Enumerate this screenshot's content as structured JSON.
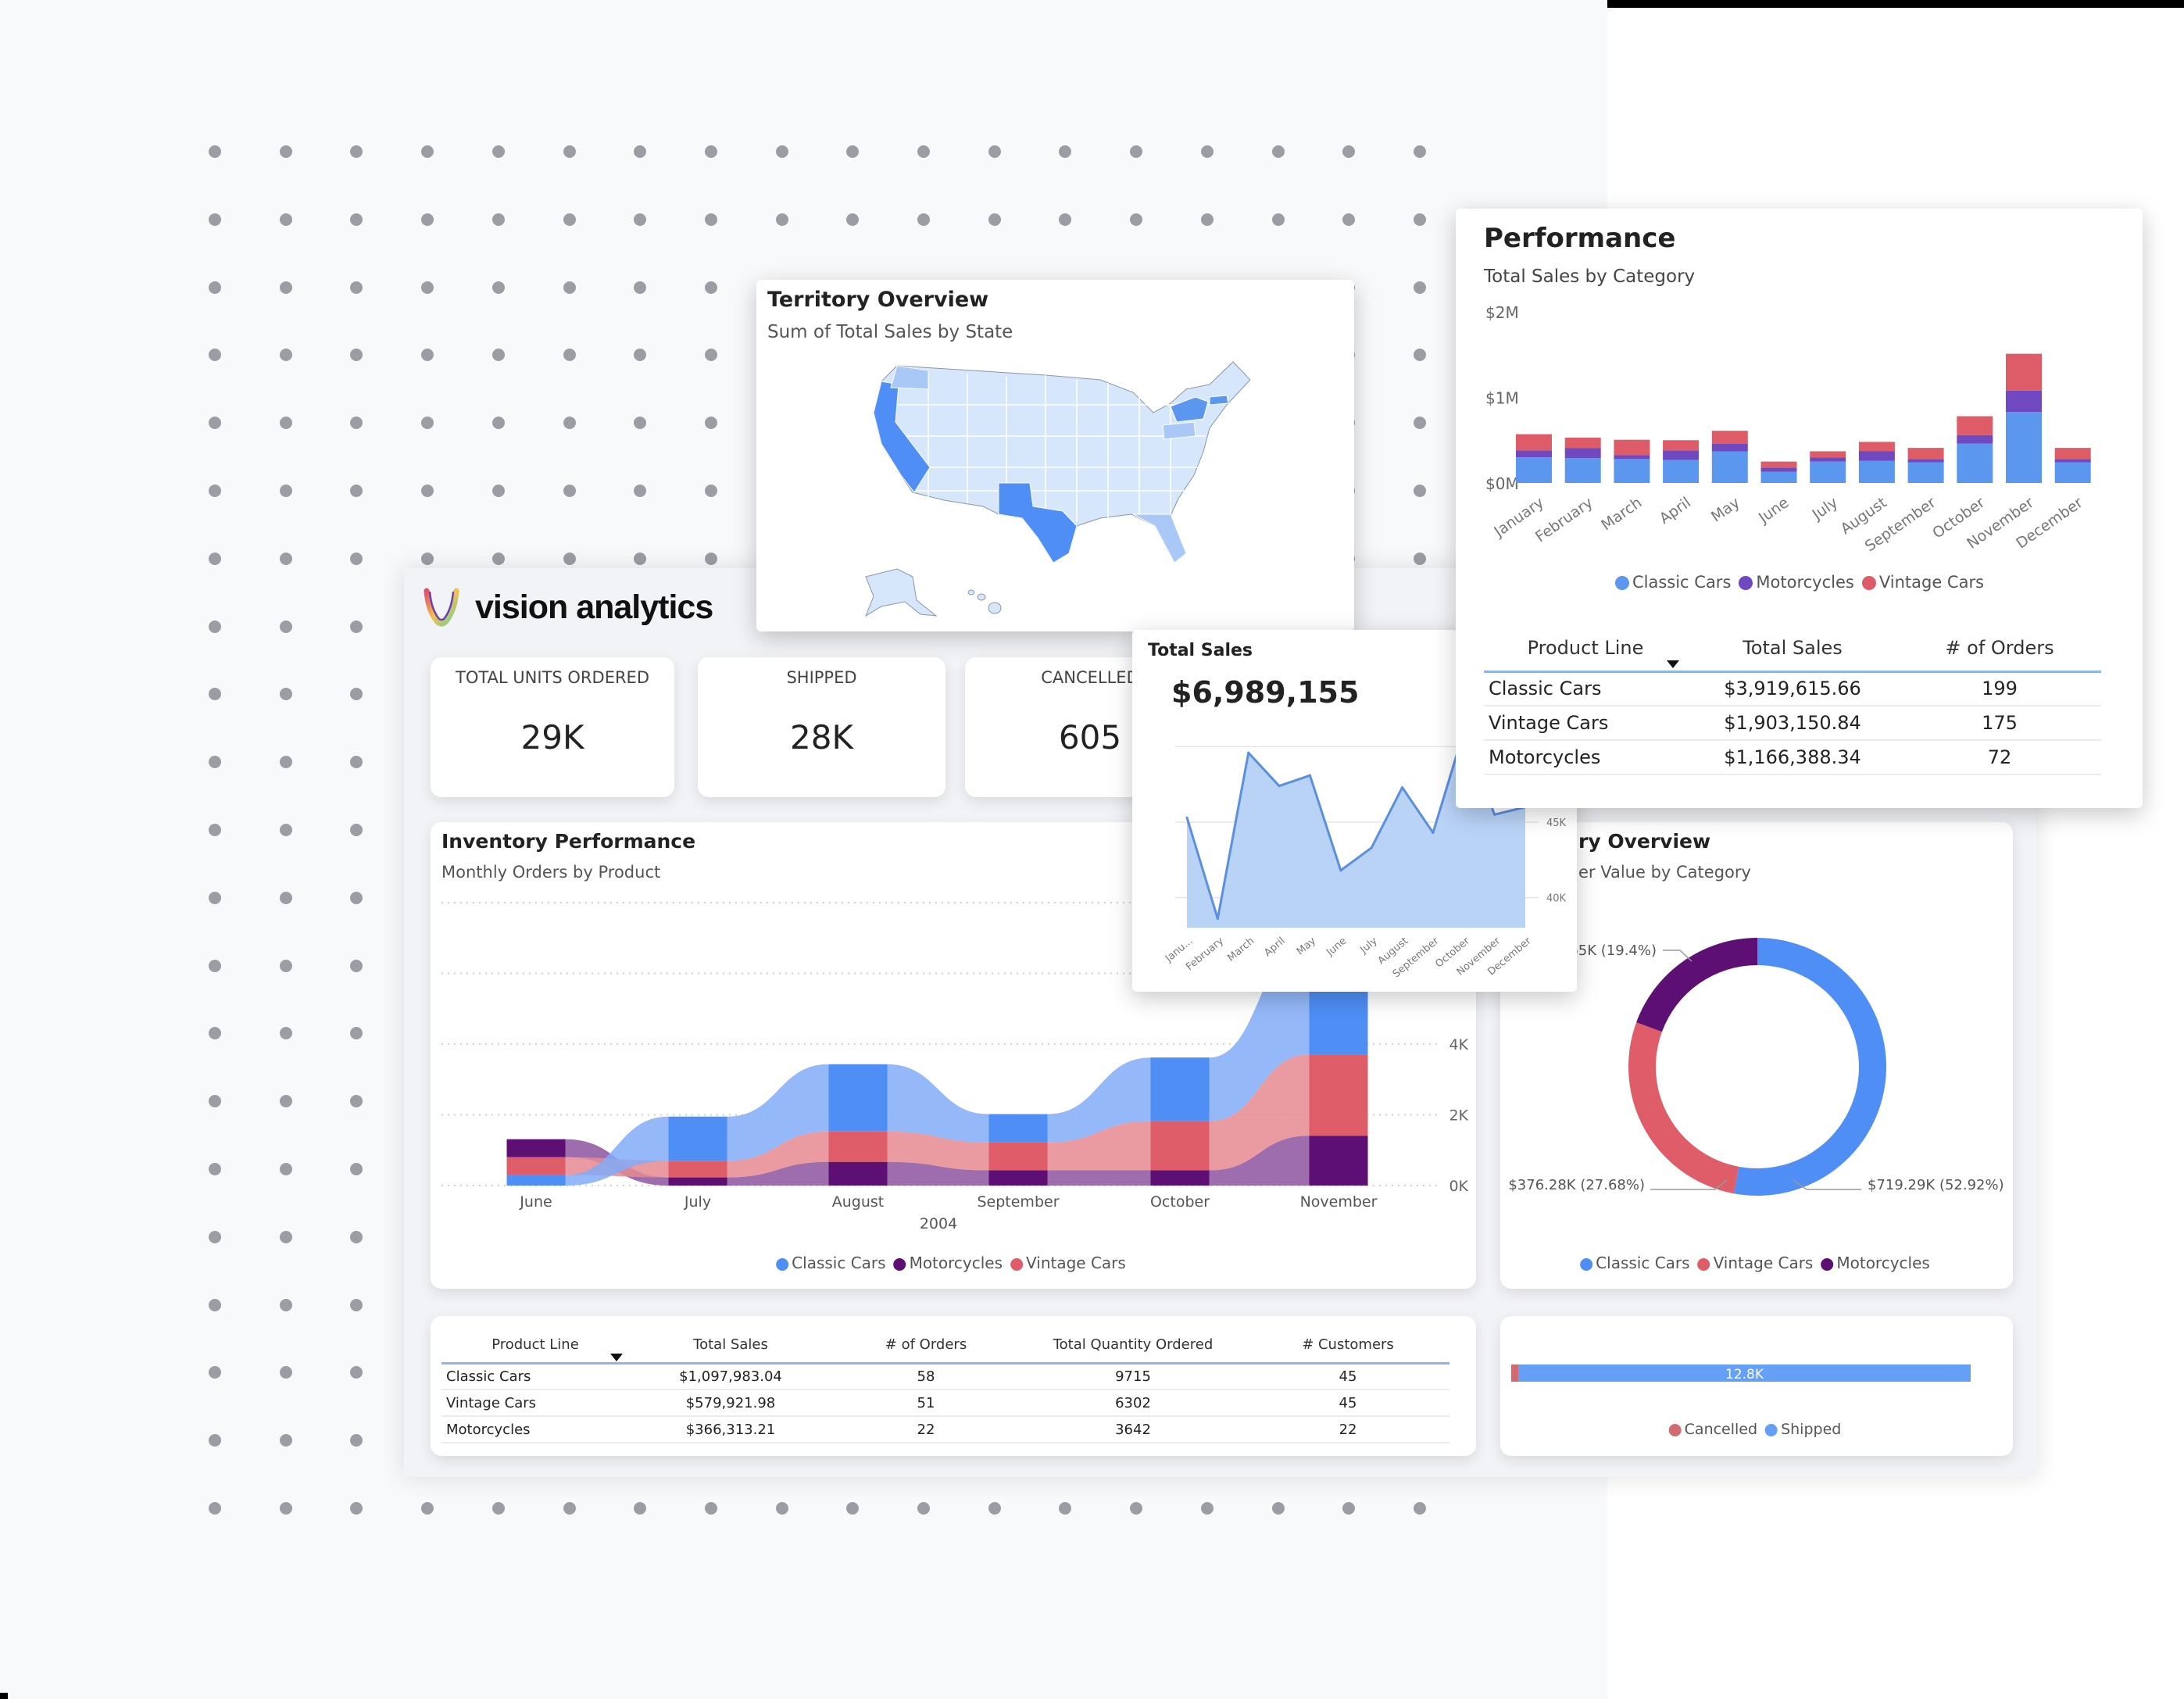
{
  "brand": {
    "name": "vision analytics"
  },
  "kpis": [
    {
      "label": "TOTAL UNITS ORDERED",
      "value": "29K"
    },
    {
      "label": "SHIPPED",
      "value": "28K"
    },
    {
      "label": "CANCELLED",
      "value": "605"
    }
  ],
  "territory": {
    "title": "Territory Overview",
    "subtitle": "Sum of Total Sales by State"
  },
  "total_sales": {
    "title": "Total Sales",
    "value": "$6,989,155"
  },
  "performance": {
    "title": "Performance",
    "subtitle": "Total Sales by Category",
    "table": {
      "headers": [
        "Product Line",
        "Total Sales",
        "# of Orders"
      ],
      "rows": [
        [
          "Classic Cars",
          "$3,919,615.66",
          "199"
        ],
        [
          "Vintage Cars",
          "$1,903,150.84",
          "175"
        ],
        [
          "Motorcycles",
          "$1,166,388.34",
          "72"
        ]
      ]
    }
  },
  "inventory": {
    "title": "Inventory Performance",
    "subtitle": "Monthly Orders by Product"
  },
  "donut_card": {
    "title_visible": "ry Overview",
    "subtitle_visible": "er Value by Category"
  },
  "bottom_table": {
    "headers": [
      "Product Line",
      "Total Sales",
      "# of Orders",
      "Total Quantity Ordered",
      "# Customers"
    ],
    "rows": [
      [
        "Classic Cars",
        "$1,097,983.04",
        "58",
        "9715",
        "45"
      ],
      [
        "Vintage Cars",
        "$579,921.98",
        "51",
        "6302",
        "45"
      ],
      [
        "Motorcycles",
        "$366,313.21",
        "22",
        "3642",
        "22"
      ]
    ]
  },
  "colors": {
    "classic": "#4f8ef5",
    "vintage": "#de5d69",
    "moto": "#5e0f73",
    "moto_perf": "#7048c0",
    "area": "#b9d3f7",
    "line": "#5b8fe0"
  },
  "chart_data": [
    {
      "id": "performance",
      "type": "bar",
      "stacked": true,
      "title": "Total Sales by Category",
      "categories": [
        "January",
        "February",
        "March",
        "April",
        "May",
        "June",
        "July",
        "August",
        "September",
        "October",
        "November",
        "December"
      ],
      "series": [
        {
          "name": "Classic Cars",
          "values": [
            0.3,
            0.29,
            0.28,
            0.27,
            0.37,
            0.13,
            0.25,
            0.26,
            0.24,
            0.46,
            0.83,
            0.24
          ]
        },
        {
          "name": "Motorcycles",
          "values": [
            0.08,
            0.12,
            0.045,
            0.11,
            0.09,
            0.05,
            0.05,
            0.11,
            0.04,
            0.1,
            0.25,
            0.04
          ]
        },
        {
          "name": "Vintage Cars",
          "values": [
            0.19,
            0.12,
            0.18,
            0.12,
            0.15,
            0.07,
            0.07,
            0.11,
            0.13,
            0.22,
            0.43,
            0.13
          ]
        }
      ],
      "yticks": [
        "$0M",
        "$1M",
        "$2M"
      ],
      "ylim": [
        0,
        2
      ],
      "legend": "bottom"
    },
    {
      "id": "total_sales",
      "type": "area",
      "categories": [
        "Janu...",
        "February",
        "March",
        "April",
        "May",
        "June",
        "July",
        "August",
        "September",
        "October",
        "November",
        "December"
      ],
      "values": [
        45.3,
        38.6,
        49.6,
        47.4,
        48.1,
        41.8,
        43.3,
        47.3,
        44.3,
        51.0,
        45.5,
        46.0
      ],
      "yticks": [
        "40K",
        "45K"
      ],
      "ylim": [
        38,
        50
      ]
    },
    {
      "id": "inventory",
      "type": "area",
      "subtype": "ribbon",
      "title": "Monthly Orders by Product",
      "xlabel": "2004",
      "categories": [
        "June",
        "July",
        "August",
        "September",
        "October",
        "November"
      ],
      "series": [
        {
          "name": "Classic Cars",
          "values": [
            0.3,
            1.25,
            1.9,
            0.8,
            1.8,
            3.2
          ]
        },
        {
          "name": "Motorcycles",
          "values": [
            0.51,
            0.23,
            0.67,
            0.43,
            0.43,
            1.41
          ]
        },
        {
          "name": "Vintage Cars",
          "values": [
            0.5,
            0.47,
            0.86,
            0.79,
            1.39,
            2.3
          ]
        }
      ],
      "yticks": [
        "0K",
        "2K",
        "4K"
      ],
      "ylim": [
        0,
        8
      ],
      "legend": "bottom"
    },
    {
      "id": "order_value",
      "type": "pie",
      "donut": true,
      "slices": [
        {
          "name": "Classic Cars",
          "percent": 52.92,
          "label": "$719.29K (52.92%)"
        },
        {
          "name": "Vintage Cars",
          "percent": 27.68,
          "label": "$376.28K (27.68%)"
        },
        {
          "name": "Motorcycles",
          "percent": 19.4,
          "label": "$263.65K (19.4%)"
        }
      ],
      "legend": [
        "Classic Cars",
        "Vintage Cars",
        "Motorcycles"
      ]
    },
    {
      "id": "shipping",
      "type": "bar",
      "orientation": "horizontal",
      "stacked": true,
      "series": [
        {
          "name": "Cancelled",
          "value": 0.2
        },
        {
          "name": "Shipped",
          "value": 12.8,
          "label": "12.8K"
        }
      ],
      "legend": [
        "Cancelled",
        "Shipped"
      ]
    }
  ]
}
